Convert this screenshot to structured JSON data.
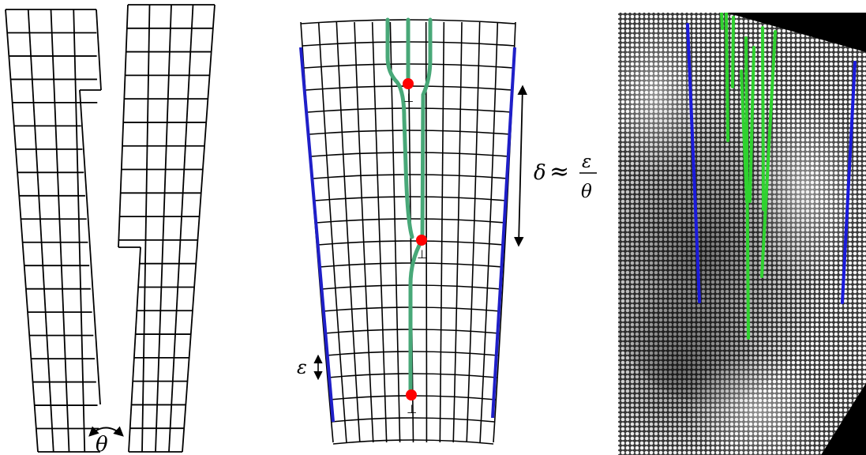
{
  "labels": {
    "theta": "θ",
    "epsilon": "ε",
    "delta": "δ",
    "approx": "≈",
    "frac_num": "ε",
    "frac_den": "θ",
    "dislocation_symbol": "⊥"
  },
  "colors": {
    "grid": "#000000",
    "boundary": "#1f1fc8",
    "dislocation_line": "#48a878",
    "dislocation_core": "#ff0000",
    "micrograph_boundary": "#1a1adc",
    "micrograph_dislocation": "#2fd22f"
  },
  "icons": {
    "rotation": "curved-double-arrow-icon",
    "scale": "vertical-double-arrow-icon"
  }
}
